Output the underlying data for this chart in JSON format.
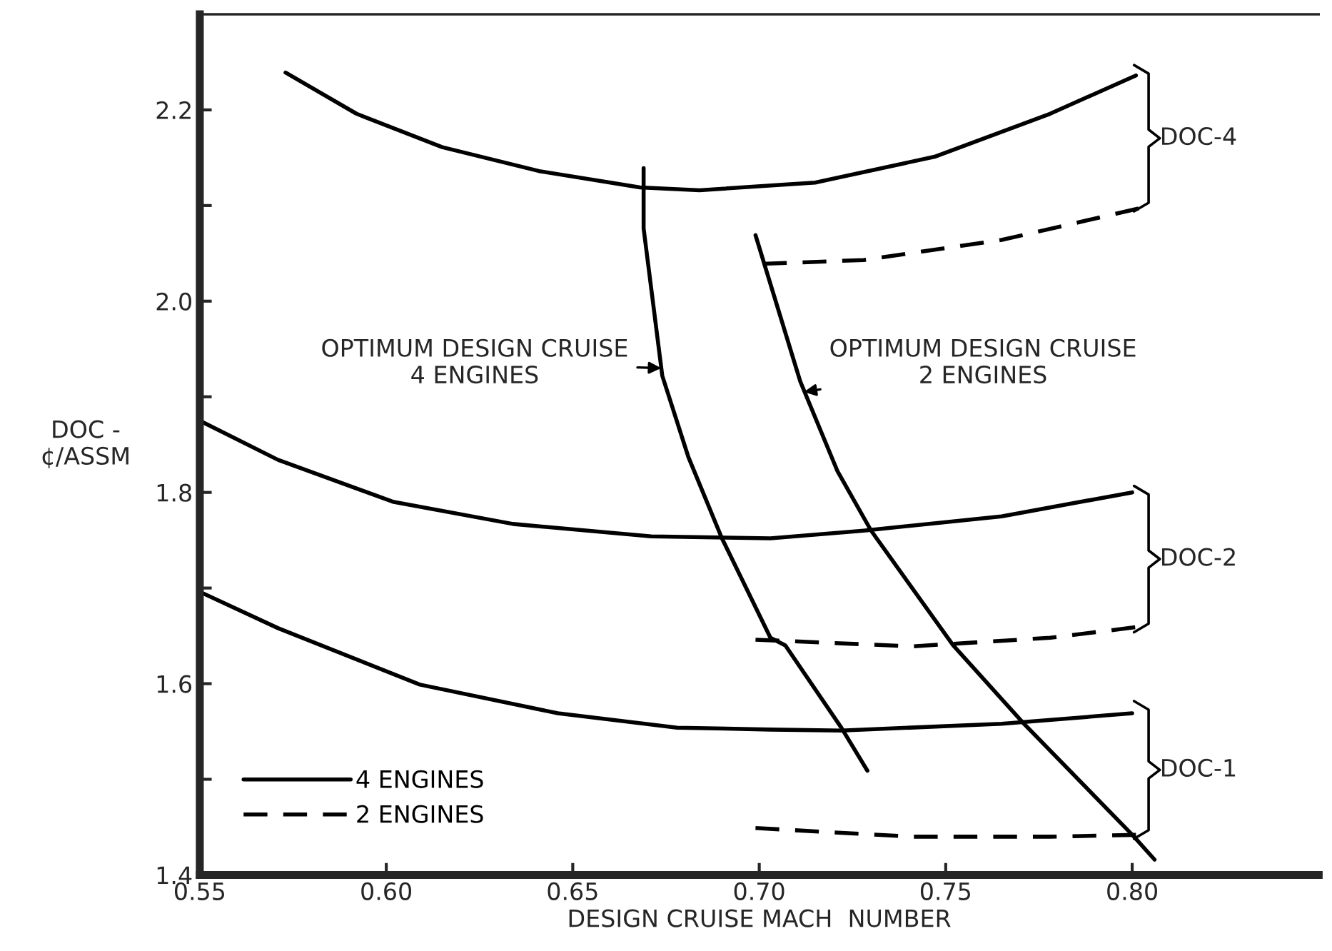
{
  "chart_data": {
    "type": "line",
    "xlabel": "DESIGN CRUISE MACH  NUMBER",
    "ylabel": "DOC -\n¢/ASSM",
    "xlim": [
      0.55,
      0.85
    ],
    "ylim": [
      1.4,
      2.3
    ],
    "xticks": [
      {
        "value": 0.55,
        "label": "0.55"
      },
      {
        "value": 0.6,
        "label": "0.60"
      },
      {
        "value": 0.65,
        "label": "0.65"
      },
      {
        "value": 0.7,
        "label": "0.70"
      },
      {
        "value": 0.75,
        "label": "0.75"
      },
      {
        "value": 0.8,
        "label": "0.80"
      }
    ],
    "yticks": [
      1.4,
      {
        "value": 1.5,
        "label": null
      },
      1.6,
      {
        "value": 1.7,
        "label": null
      },
      1.8,
      {
        "value": 1.9,
        "label": null
      },
      {
        "value": 2.0,
        "label": "2.0"
      },
      {
        "value": 2.1,
        "label": null
      },
      2.2
    ],
    "grid": false,
    "legend": "bottom left",
    "marker": "none",
    "series": [
      {
        "name": "4 ENGINES",
        "color": "#000000",
        "line_style": "solid",
        "x": [
          0.573,
          0.592,
          0.615,
          0.641,
          0.668,
          0.684,
          0.715,
          0.747,
          0.778,
          0.801
        ],
        "values": [
          2.239,
          2.196,
          2.161,
          2.136,
          2.119,
          2.116,
          2.124,
          2.151,
          2.196,
          2.236
        ]
      },
      {
        "name": "2 ENGINES",
        "color": "#000000",
        "line_style": "dashed",
        "x": [
          0.701,
          0.728,
          0.765,
          0.803
        ],
        "values": [
          2.039,
          2.043,
          2.064,
          2.098
        ]
      },
      {
        "color": "#000000",
        "line_style": "solid",
        "x": [
          0.55,
          0.571,
          0.602,
          0.634,
          0.671,
          0.703,
          0.728,
          0.765,
          0.8
        ],
        "values": [
          1.875,
          1.834,
          1.79,
          1.767,
          1.754,
          1.752,
          1.76,
          1.775,
          1.8
        ]
      },
      {
        "color": "#000000",
        "line_style": "dashed",
        "x": [
          0.699,
          0.741,
          0.778,
          0.805
        ],
        "values": [
          1.646,
          1.639,
          1.648,
          1.661
        ]
      },
      {
        "color": "#000000",
        "line_style": "solid",
        "x": [
          0.55,
          0.571,
          0.609,
          0.646,
          0.678,
          0.703,
          0.722,
          0.765,
          0.8
        ],
        "values": [
          1.696,
          1.658,
          1.599,
          1.569,
          1.554,
          1.552,
          1.551,
          1.558,
          1.569
        ]
      },
      {
        "color": "#000000",
        "line_style": "dashed",
        "x": [
          0.699,
          0.741,
          0.778,
          0.803
        ],
        "values": [
          1.449,
          1.44,
          1.44,
          1.442
        ]
      },
      {
        "color": "#000000",
        "line_style": "solid",
        "x": [
          0.669,
          0.669,
          0.674,
          0.681,
          0.69,
          0.703,
          0.707,
          0.722,
          0.729
        ],
        "values": [
          2.139,
          2.076,
          1.922,
          1.837,
          1.752,
          1.648,
          1.64,
          1.554,
          1.509
        ]
      },
      {
        "color": "#000000",
        "line_style": "solid",
        "x": [
          0.699,
          0.711,
          0.721,
          0.73,
          0.752,
          0.771,
          0.8,
          0.806
        ],
        "values": [
          2.069,
          1.916,
          1.822,
          1.76,
          1.64,
          1.558,
          1.442,
          1.416
        ]
      }
    ],
    "annotations": [
      {
        "text": "OPTIMUM DESIGN CRUISE\n4 ENGINES",
        "x": 0.6737,
        "y": 1.93
      },
      {
        "text": "OPTIMUM DESIGN CRUISE\n2 ENGINES",
        "x": 0.712,
        "y": 1.905
      },
      "DOC-4",
      "DOC-2",
      "DOC-1"
    ]
  }
}
